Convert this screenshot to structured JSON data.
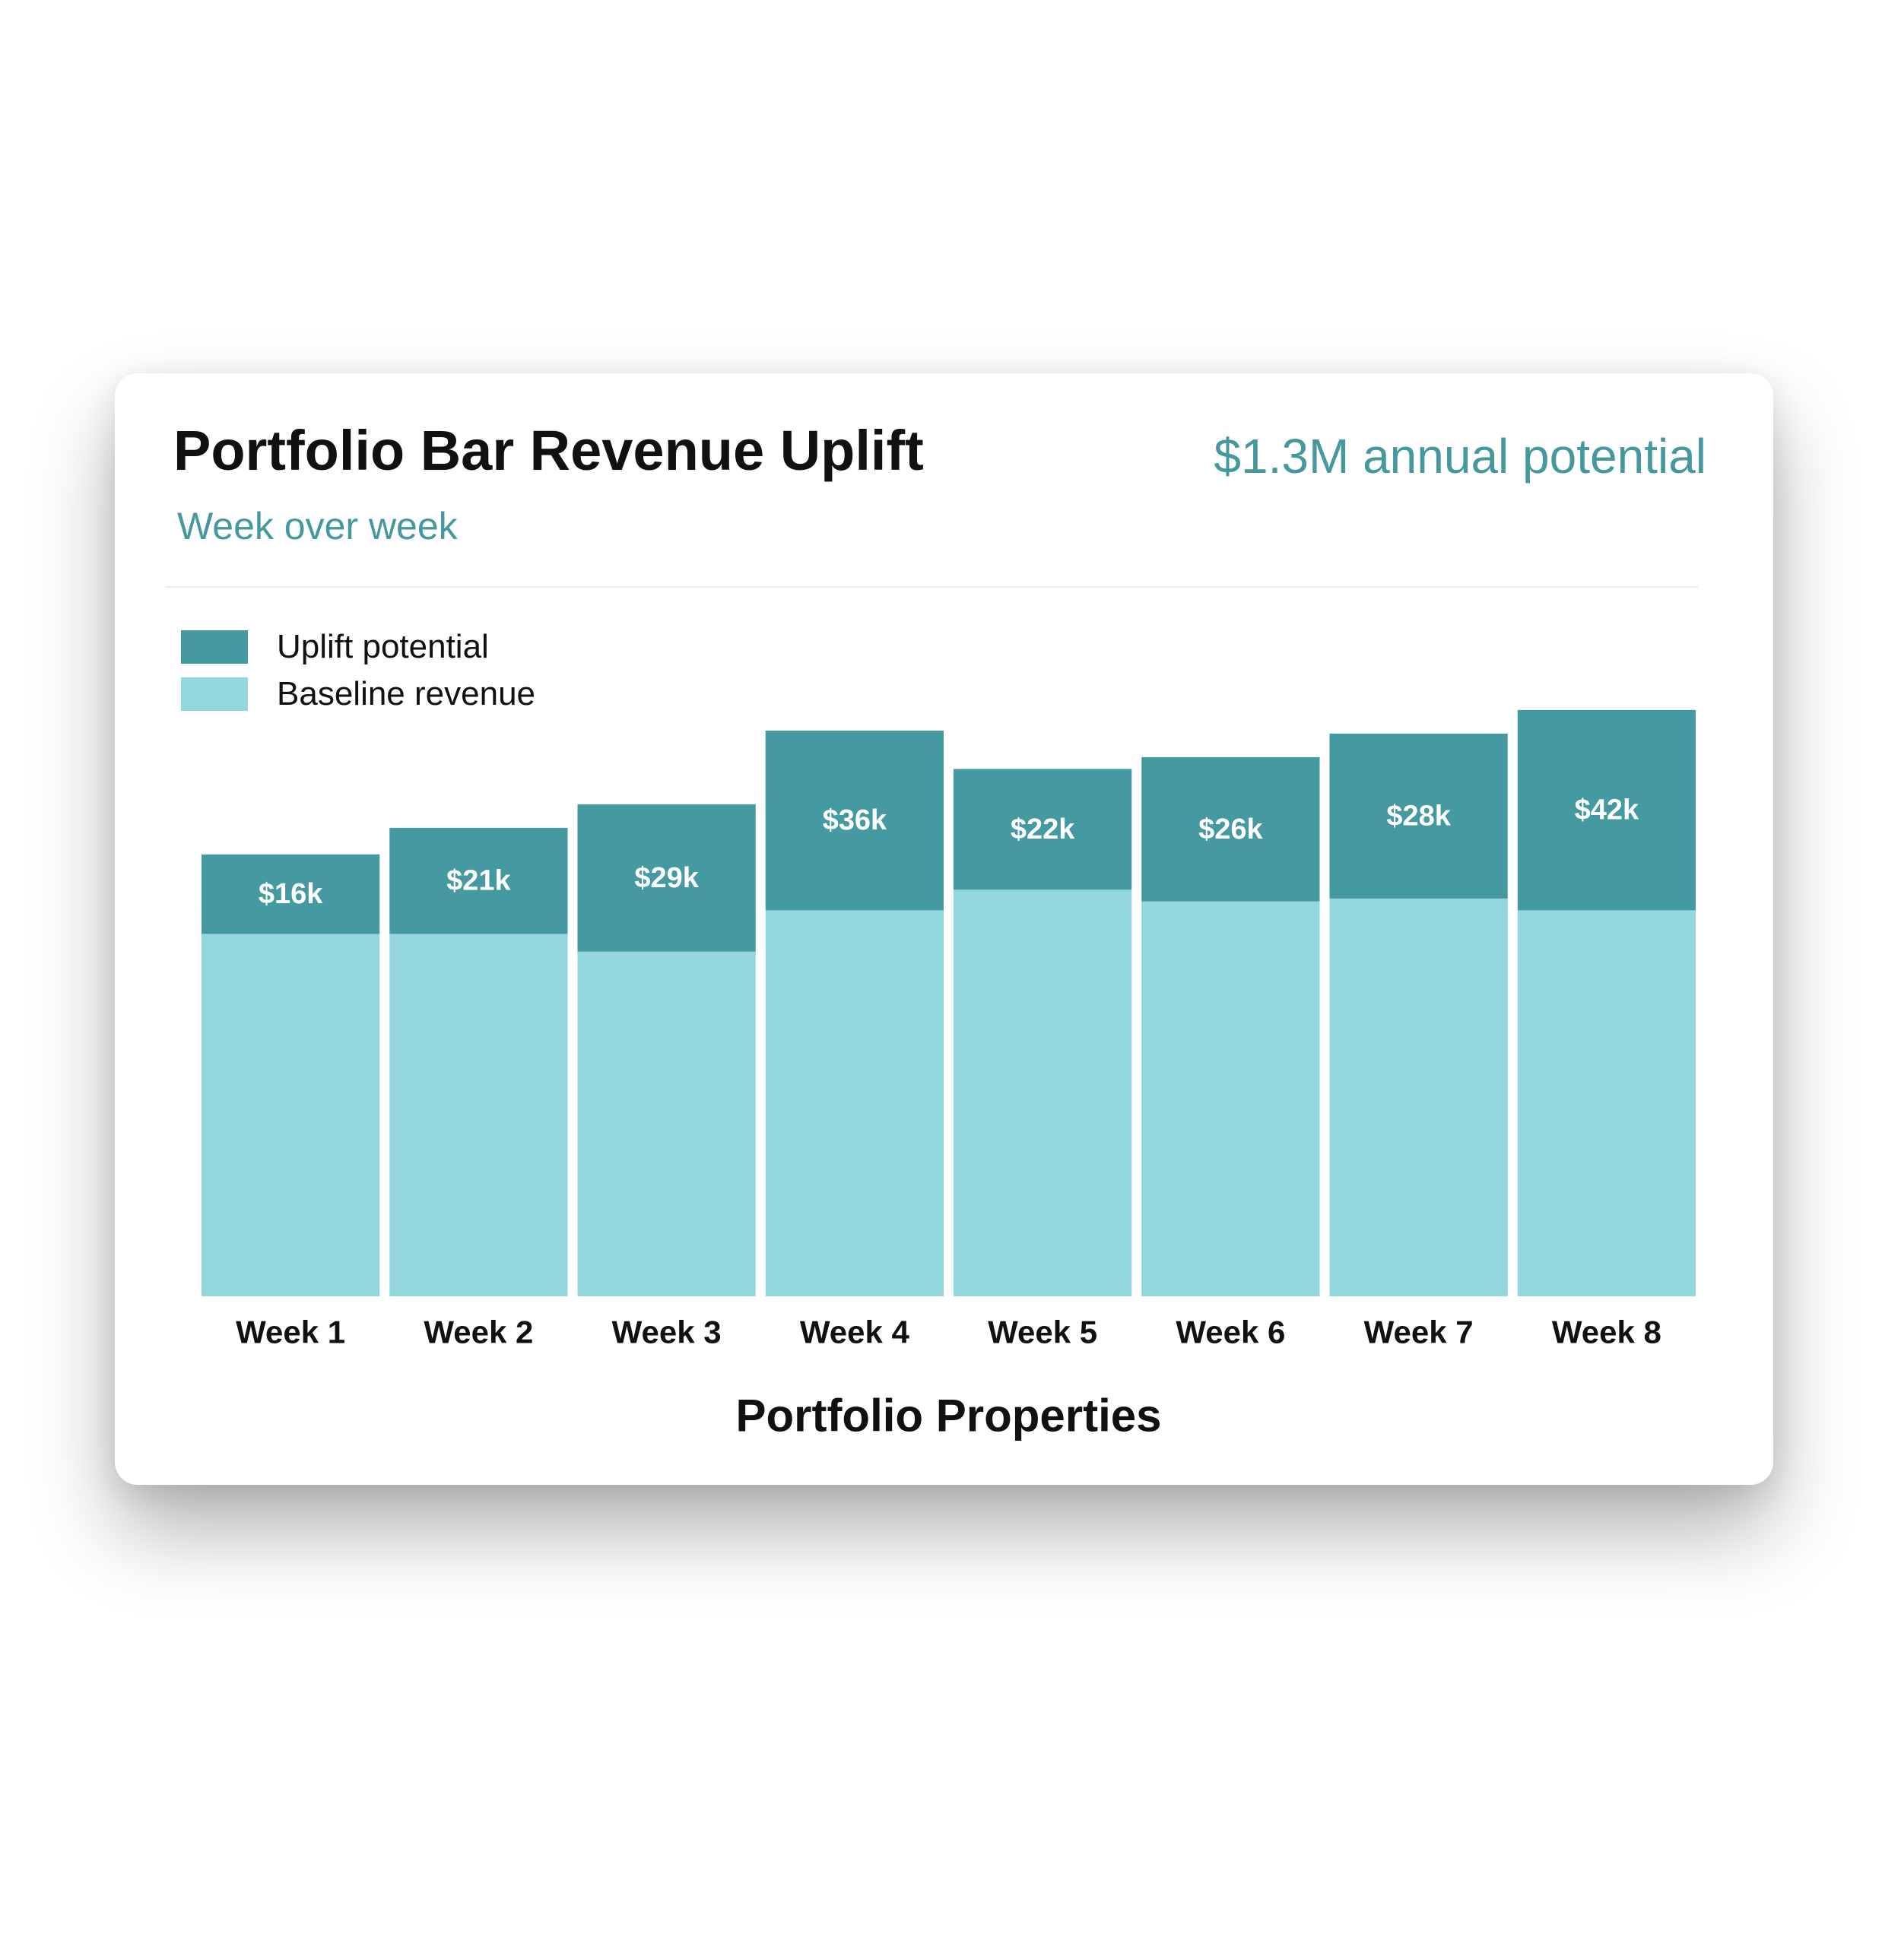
{
  "header": {
    "title": "Portfolio Bar Revenue Uplift",
    "subtitle": "Week over week",
    "headline_stat": "$1.3M annual potential"
  },
  "colors": {
    "uplift": "#449aa0",
    "baseline": "#93d6de",
    "accent_text": "#44989e",
    "label_text": "#111111",
    "bar_label_text": "#ffffff"
  },
  "legend": {
    "items": [
      {
        "label": "Uplift potential",
        "color": "#449aa0"
      },
      {
        "label": "Baseline revenue",
        "color": "#93d6de"
      }
    ]
  },
  "chart_data": {
    "type": "bar",
    "stacked": true,
    "title": "Portfolio Bar Revenue Uplift",
    "subtitle": "Week over week",
    "xlabel": "Portfolio Properties",
    "ylabel": "",
    "ylim": [
      0,
      100
    ],
    "grid": false,
    "legend_position": "top-left",
    "categories": [
      "Week 1",
      "Week 2",
      "Week 3",
      "Week 4",
      "Week 5",
      "Week 6",
      "Week 7",
      "Week 8"
    ],
    "series": [
      {
        "name": "Baseline revenue",
        "values": [
          61.5,
          61.5,
          58.5,
          65.5,
          69,
          67,
          67.5,
          65.5
        ]
      },
      {
        "name": "Uplift potential",
        "values": [
          13.5,
          18,
          25,
          30.5,
          20.5,
          24.5,
          28,
          34
        ],
        "labels": [
          "$16k",
          "$21k",
          "$29k",
          "$36k",
          "$22k",
          "$26k",
          "$28k",
          "$42k"
        ]
      }
    ]
  }
}
